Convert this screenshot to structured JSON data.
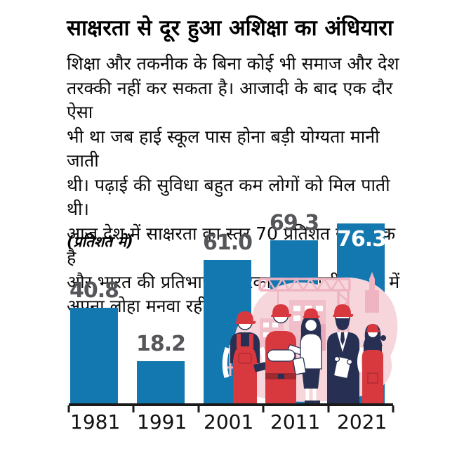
{
  "article": {
    "title": "साक्षरता से दूर हुआ अशिक्षा का अंधियारा",
    "body_lines": [
      "शिक्षा और तकनीक के बिना कोई भी समाज और देश",
      "तरक्की नहीं कर सकता है। आजादी के बाद एक दौर ऐसा",
      "भी था जब हाई स्कूल पास होना बड़ी योग्यता मानी जाती",
      "थी। पढ़ाई की सुविधा बहुत कम लोगों को मिल पाती थी।",
      "आज देश में साक्षरता का स्तर 70 प्रतिशत से अधिक है",
      "और भारत की प्रतिभाएं अमेरिका सहित पूरी दुनिया में",
      "अपना लोहा मनवा रहीं हैं।"
    ],
    "chart_note": "(प्रतिशत में)"
  },
  "chart_data": {
    "type": "bar",
    "title": "साक्षरता से दूर हुआ अशिक्षा का अंधियारा",
    "subtitle_note": "(प्रतिशत में)",
    "categories": [
      "1981",
      "1991",
      "2001",
      "2011",
      "2021"
    ],
    "values": [
      40.8,
      18.2,
      61.0,
      69.3,
      76.3
    ],
    "value_labels": [
      "40.8",
      "18.2",
      "61.0",
      "69.3",
      "76.3"
    ],
    "label_positions": [
      "above",
      "above",
      "above",
      "above",
      "inside"
    ],
    "xlabel": "",
    "ylabel": "",
    "ylim": [
      0,
      80
    ],
    "grid": false,
    "legend": false
  },
  "colors": {
    "bar_blue": "#1478b0",
    "value_label_gray": "#55565a",
    "inside_label_white": "#ffffff",
    "axis_black": "#1a1a1a",
    "text_black": "#000000",
    "blob_pink": "#f6d6db",
    "crane_pink": "#eeb4c2",
    "building_pink": "#f0bfca",
    "worker_red": "#d8393f",
    "worker_dark_red": "#9e2a30",
    "worker_navy": "#273052"
  },
  "illustration": {
    "name": "construction-workers-crane"
  }
}
